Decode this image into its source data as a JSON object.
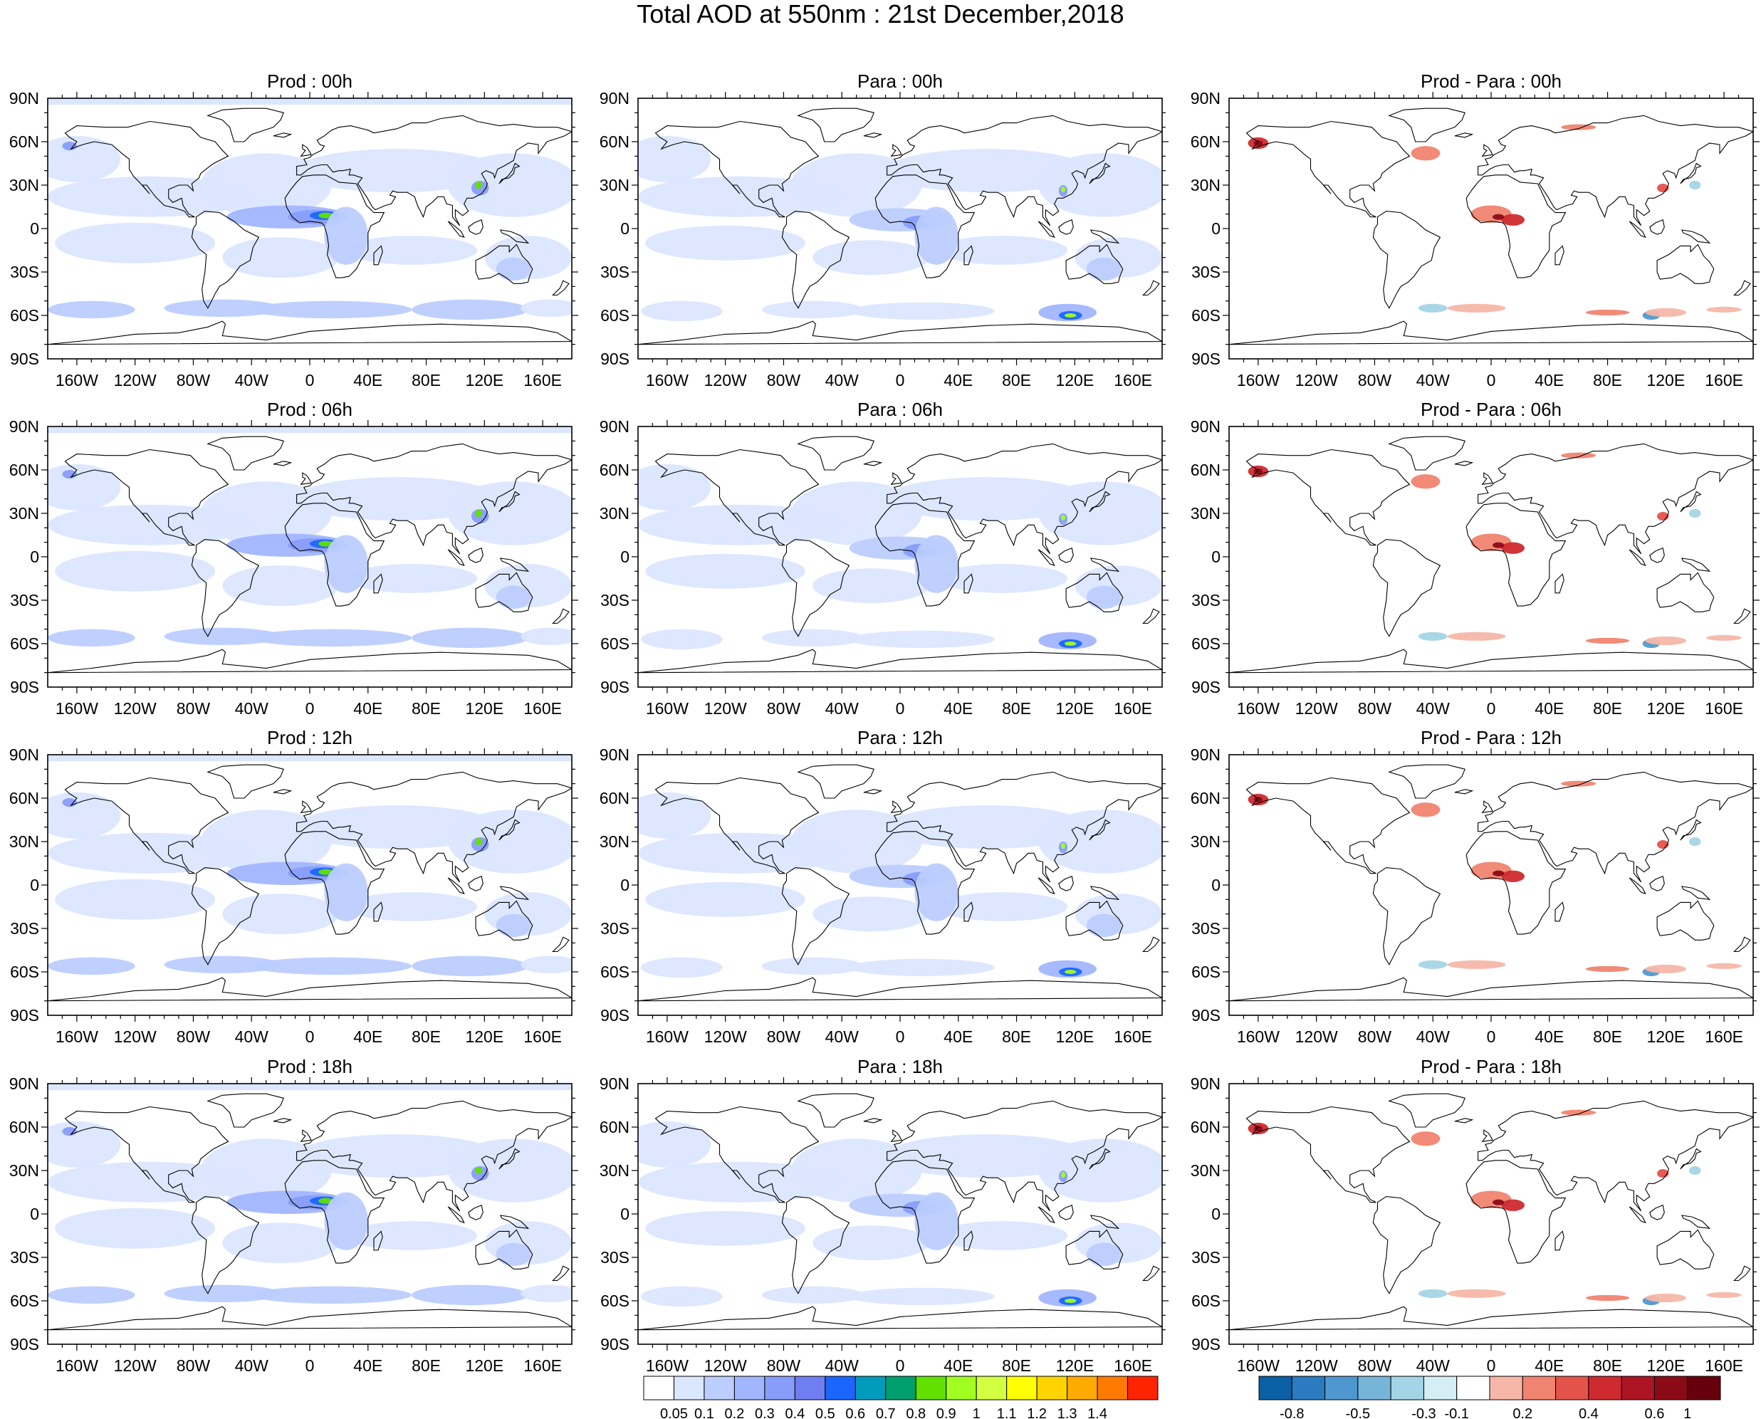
{
  "title": "Total AOD at 550nm : 21st December,2018",
  "panels": [
    {
      "title": "Prod : 00h",
      "kind": "prod"
    },
    {
      "title": "Para : 00h",
      "kind": "para"
    },
    {
      "title": "Prod - Para : 00h",
      "kind": "diff"
    },
    {
      "title": "Prod : 06h",
      "kind": "prod"
    },
    {
      "title": "Para : 06h",
      "kind": "para"
    },
    {
      "title": "Prod - Para : 06h",
      "kind": "diff"
    },
    {
      "title": "Prod : 12h",
      "kind": "prod"
    },
    {
      "title": "Para : 12h",
      "kind": "para"
    },
    {
      "title": "Prod - Para : 12h",
      "kind": "diff"
    },
    {
      "title": "Prod : 18h",
      "kind": "prod"
    },
    {
      "title": "Para : 18h",
      "kind": "para"
    },
    {
      "title": "Prod - Para : 18h",
      "kind": "diff"
    }
  ],
  "axes": {
    "lat_labels": [
      "90N",
      "60N",
      "30N",
      "0",
      "30S",
      "60S",
      "90S"
    ],
    "lon_labels": [
      "160W",
      "120W",
      "80W",
      "40W",
      "0",
      "40E",
      "80E",
      "120E",
      "160E"
    ]
  },
  "colorbars": {
    "aod": {
      "labels": [
        "0.05",
        "0.1",
        "0.2",
        "0.3",
        "0.4",
        "0.5",
        "0.6",
        "0.7",
        "0.8",
        "0.9",
        "1",
        "1.1",
        "1.2",
        "1.3",
        "1.4"
      ],
      "colors": [
        "#ffffff",
        "#dbe6ff",
        "#bccdff",
        "#a2b6ff",
        "#889dfa",
        "#6f7ef0",
        "#1a66ff",
        "#009bbd",
        "#00a06e",
        "#62e000",
        "#a0ff20",
        "#d2ff40",
        "#ffff00",
        "#ffd400",
        "#ffaa00",
        "#ff7a00",
        "#ff2400"
      ]
    },
    "diff": {
      "labels": [
        "-0.8",
        "-0.5",
        "-0.3",
        "-0.1",
        "0.2",
        "0.4",
        "0.6",
        "1"
      ],
      "colors": [
        "#0b5fa5",
        "#2a7bbf",
        "#4f98cf",
        "#77b5d8",
        "#a4d5e6",
        "#d3eef5",
        "#ffffff",
        "#f6b7a8",
        "#f08470",
        "#e4534a",
        "#cf2a2f",
        "#ad1424",
        "#8a0b17",
        "#67000d"
      ]
    }
  }
}
